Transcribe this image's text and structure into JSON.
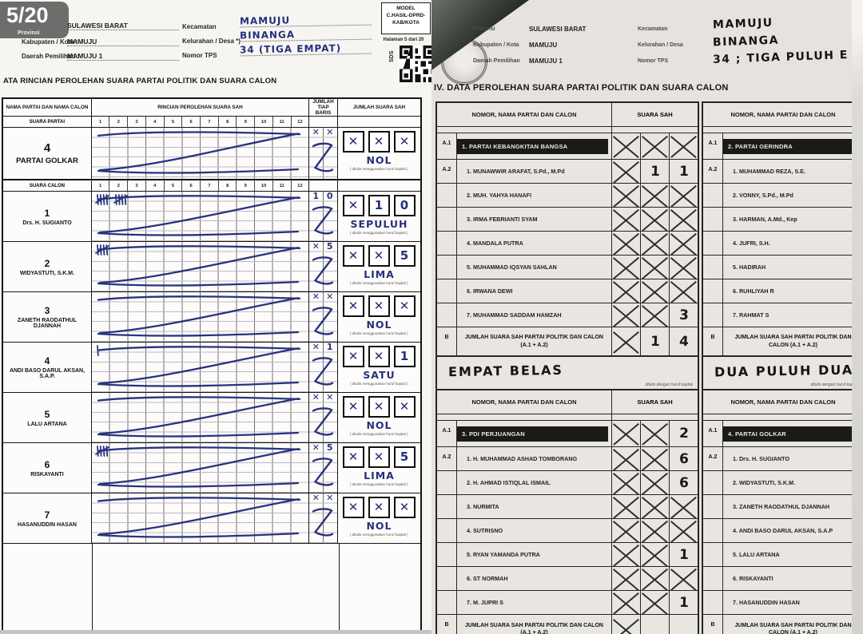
{
  "page_badge": {
    "number": "5/20",
    "label": "Provinsi"
  },
  "left_form": {
    "header": {
      "fields_left": [
        {
          "label": "",
          "value": "SULAWESI BARAT"
        },
        {
          "label": "Kabupaten / Kota :",
          "value": "MAMUJU"
        },
        {
          "label": "Daerah Pemilihan :",
          "value": "MAMUJU 1"
        }
      ],
      "fields_right": [
        {
          "label": "Kecamatan",
          "value": "MAMUJU"
        },
        {
          "label": "Kelurahan / Desa *)",
          "value": "BINANGA"
        },
        {
          "label": "Nomor TPS",
          "value": "34 (TIGA EMPAT)"
        }
      ],
      "model_box": "MODEL\nC.HASIL-DPRD-\nKAB/KOTA",
      "page_note": "Halaman 5 dari 20",
      "qr_side_label": "SDS"
    },
    "section_title": "ATA RINCIAN PEROLEHAN SUARA PARTAI POLITIK DAN SUARA CALON",
    "table": {
      "headers": {
        "name": "NAMA PARTAI DAN NAMA CALON",
        "rincian": "RINCIAN PEROLEHAN SUARA SAH",
        "jumlah_baris": "JUMLAH\nTIAP BARIS",
        "jumlah_sah": "JUMLAH SUARA SAH"
      },
      "ticks": [
        "1",
        "2",
        "3",
        "4",
        "5",
        "6",
        "7",
        "8",
        "9",
        "10",
        "11",
        "12"
      ],
      "section_party": "SUARA PARTAI",
      "section_calon": "SUARA CALON",
      "capital_note": "( ditulis menggunakan huruf kapital )",
      "blocks": [
        {
          "number": "4",
          "name": "PARTAI GOLKAR",
          "tally": 0,
          "row_marks": [
            "✕",
            "✕"
          ],
          "boxes": [
            "✕",
            "✕",
            "✕"
          ],
          "word": "NOL"
        },
        {
          "number": "1",
          "name": "Drs. H. SUGIANTO",
          "tally": 10,
          "row_marks": [
            "1",
            "0"
          ],
          "boxes": [
            "✕",
            "1",
            "0"
          ],
          "word": "SEPULUH"
        },
        {
          "number": "2",
          "name": "WIDYASTUTI, S.K.M.",
          "tally": 5,
          "row_marks": [
            "✕",
            "5"
          ],
          "boxes": [
            "✕",
            "✕",
            "5"
          ],
          "word": "LIMA"
        },
        {
          "number": "3",
          "name": "ZANETH RAODATHUL DJANNAH",
          "tally": 0,
          "row_marks": [
            "✕",
            "✕"
          ],
          "boxes": [
            "✕",
            "✕",
            "✕"
          ],
          "word": "NOL"
        },
        {
          "number": "4",
          "name": "ANDI BASO DARUL AKSAN, S.A.P.",
          "tally": 1,
          "row_marks": [
            "✕",
            "1"
          ],
          "boxes": [
            "✕",
            "✕",
            "1"
          ],
          "word": "SATU"
        },
        {
          "number": "5",
          "name": "LALU ARTANA",
          "tally": 0,
          "row_marks": [
            "✕",
            "✕"
          ],
          "boxes": [
            "✕",
            "✕",
            "✕"
          ],
          "word": "NOL"
        },
        {
          "number": "6",
          "name": "RISKAYANTI",
          "tally": 5,
          "row_marks": [
            "✕",
            "5"
          ],
          "boxes": [
            "✕",
            "✕",
            "5"
          ],
          "word": "LIMA"
        },
        {
          "number": "7",
          "name": "HASANUDDIN HASAN",
          "tally": 0,
          "row_marks": [
            "✕",
            "✕"
          ],
          "boxes": [
            "✕",
            "✕",
            "✕"
          ],
          "word": "NOL"
        }
      ]
    }
  },
  "right_form": {
    "header": {
      "fields_left": [
        {
          "label": "Provinsi",
          "value": "SULAWESI BARAT"
        },
        {
          "label": "Kabupaten / Kota",
          "value": "MAMUJU"
        },
        {
          "label": "Daerah Pemilihan",
          "value": "MAMUJU 1"
        }
      ],
      "fields_right": [
        {
          "label": "Kecamatan",
          "value": "MAMUJU"
        },
        {
          "label": "Kelurahan / Desa",
          "value": "BINANGA"
        },
        {
          "label": "Nomor TPS",
          "value": "34 ; TIGA PULUH E"
        }
      ]
    },
    "section_title": "IV. DATA PEROLEHAN SUARA PARTAI POLITIK DAN SUARA CALON",
    "col_header_name": "NOMOR, NAMA PARTAI DAN CALON",
    "col_header_votes": "SUARA SAH",
    "row_labels": {
      "a1": "A.1",
      "a2": "A.2",
      "b": "B"
    },
    "jumlah_label": "JUMLAH SUARA SAH PARTAI POLITIK DAN CALON (A.1 + A.2)",
    "jumlah_note": "ditulis dengan huruf kapital",
    "tables": [
      {
        "party": "1. PARTAI KEBANGKITAN BANGSA",
        "party_cells": [
          "x",
          "x",
          "x"
        ],
        "candidates": [
          {
            "name": "1. MUNAWWIR ARAFAT, S.Pd., M.Pd",
            "cells": [
              "x",
              "1",
              "1"
            ]
          },
          {
            "name": "2. MUH. YAHYA HANAFI",
            "cells": [
              "x",
              "x",
              "x"
            ]
          },
          {
            "name": "3. IRMA FEBRIANTI SYAM",
            "cells": [
              "x",
              "x",
              "x"
            ]
          },
          {
            "name": "4. MANDALA PUTRA",
            "cells": [
              "x",
              "x",
              "x"
            ]
          },
          {
            "name": "5. MUHAMMAD IQSYAN SAHLAN",
            "cells": [
              "x",
              "x",
              "x"
            ]
          },
          {
            "name": "6. IRWANA DEWI",
            "cells": [
              "x",
              "x",
              "x"
            ]
          },
          {
            "name": "7. MUHAMMAD SADDAM HAMZAH",
            "cells": [
              "x",
              "x",
              "3"
            ]
          }
        ],
        "jumlah_cells": [
          "x",
          "1",
          "4"
        ],
        "jumlah_word": "EMPAT BELAS",
        "has_votes_col": true,
        "cut_bottom": false
      },
      {
        "party": "2. PARTAI GERINDRA",
        "party_cells": [],
        "candidates": [
          {
            "name": "1. MUHAMMAD REZA, S.E.",
            "cells": []
          },
          {
            "name": "2. VONNY, S.Pd., M.Pd",
            "cells": []
          },
          {
            "name": "3. HARMAN, A.Md., Kep",
            "cells": []
          },
          {
            "name": "4. JUFRI, S.H.",
            "cells": []
          },
          {
            "name": "5. HADIRAH",
            "cells": []
          },
          {
            "name": "6. RUHLIYAH R",
            "cells": []
          },
          {
            "name": "7. RAHMAT S",
            "cells": []
          }
        ],
        "jumlah_cells": [],
        "jumlah_word": "DUA PULUH DUA",
        "has_votes_col": false,
        "cut_bottom": false
      },
      {
        "party": "3. PDI PERJUANGAN",
        "party_cells": [
          "x",
          "x",
          "2"
        ],
        "candidates": [
          {
            "name": "1. H. MUHAMMAD ASHAD TOMBORANG",
            "cells": [
              "x",
              "x",
              "6"
            ]
          },
          {
            "name": "2. H. AHMAD ISTIQLAL ISMAIL",
            "cells": [
              "x",
              "x",
              "6"
            ]
          },
          {
            "name": "3. NURMITA",
            "cells": [
              "x",
              "x",
              "x"
            ]
          },
          {
            "name": "4. SUTRISNO",
            "cells": [
              "x",
              "x",
              "x"
            ]
          },
          {
            "name": "5. RYAN YAMANDA PUTRA",
            "cells": [
              "x",
              "x",
              "1"
            ]
          },
          {
            "name": "6. ST NORMAH",
            "cells": [
              "x",
              "x",
              "x"
            ]
          },
          {
            "name": "7. M. JUPRI S",
            "cells": [
              "x",
              "x",
              "1"
            ]
          }
        ],
        "jumlah_cells": [
          "x",
          "",
          ""
        ],
        "jumlah_word": "",
        "has_votes_col": true,
        "cut_bottom": true
      },
      {
        "party": "4. PARTAI GOLKAR",
        "party_cells": [],
        "candidates": [
          {
            "name": "1. Drs. H. SUGIANTO",
            "cells": []
          },
          {
            "name": "2. WIDYASTUTI, S.K.M.",
            "cells": []
          },
          {
            "name": "3. ZANETH RAODATHUL DJANNAH",
            "cells": []
          },
          {
            "name": "4. ANDI BASO DARUL AKSAN, S.A.P",
            "cells": []
          },
          {
            "name": "5. LALU ARTANA",
            "cells": []
          },
          {
            "name": "6. RISKAYANTI",
            "cells": []
          },
          {
            "name": "7. HASANUDDIN HASAN",
            "cells": []
          }
        ],
        "jumlah_cells": [],
        "jumlah_word": "",
        "has_votes_col": false,
        "cut_bottom": true
      }
    ]
  }
}
